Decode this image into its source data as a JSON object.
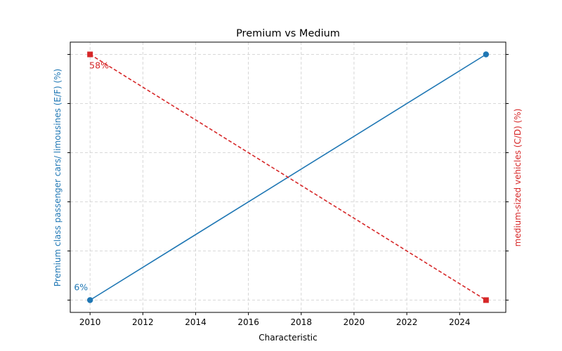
{
  "chart_data": {
    "type": "line",
    "title": "Premium vs Medium",
    "xlabel": "Characteristic",
    "x": [
      2010,
      2025
    ],
    "xlim": [
      2009.25,
      2025.75
    ],
    "xticks": [
      "2010",
      "2012",
      "2014",
      "2016",
      "2018",
      "2020",
      "2022",
      "2024"
    ],
    "grid": true,
    "series": [
      {
        "name": "Premium class passenger cars/ limousines (E/F) (%)",
        "axis": "left",
        "values": [
          6,
          39
        ],
        "ylim": [
          4.35,
          40.65
        ],
        "color": "#1f77b4",
        "style": "solid",
        "marker": "circle",
        "labels": [
          "6%",
          ""
        ]
      },
      {
        "name": "medium-sized vehicles (C/D) (%)",
        "axis": "right",
        "values": [
          58,
          26
        ],
        "ylim": [
          24.4,
          59.6
        ],
        "color": "#d62728",
        "style": "dashed",
        "marker": "square",
        "labels": [
          "58%",
          ""
        ]
      }
    ]
  }
}
